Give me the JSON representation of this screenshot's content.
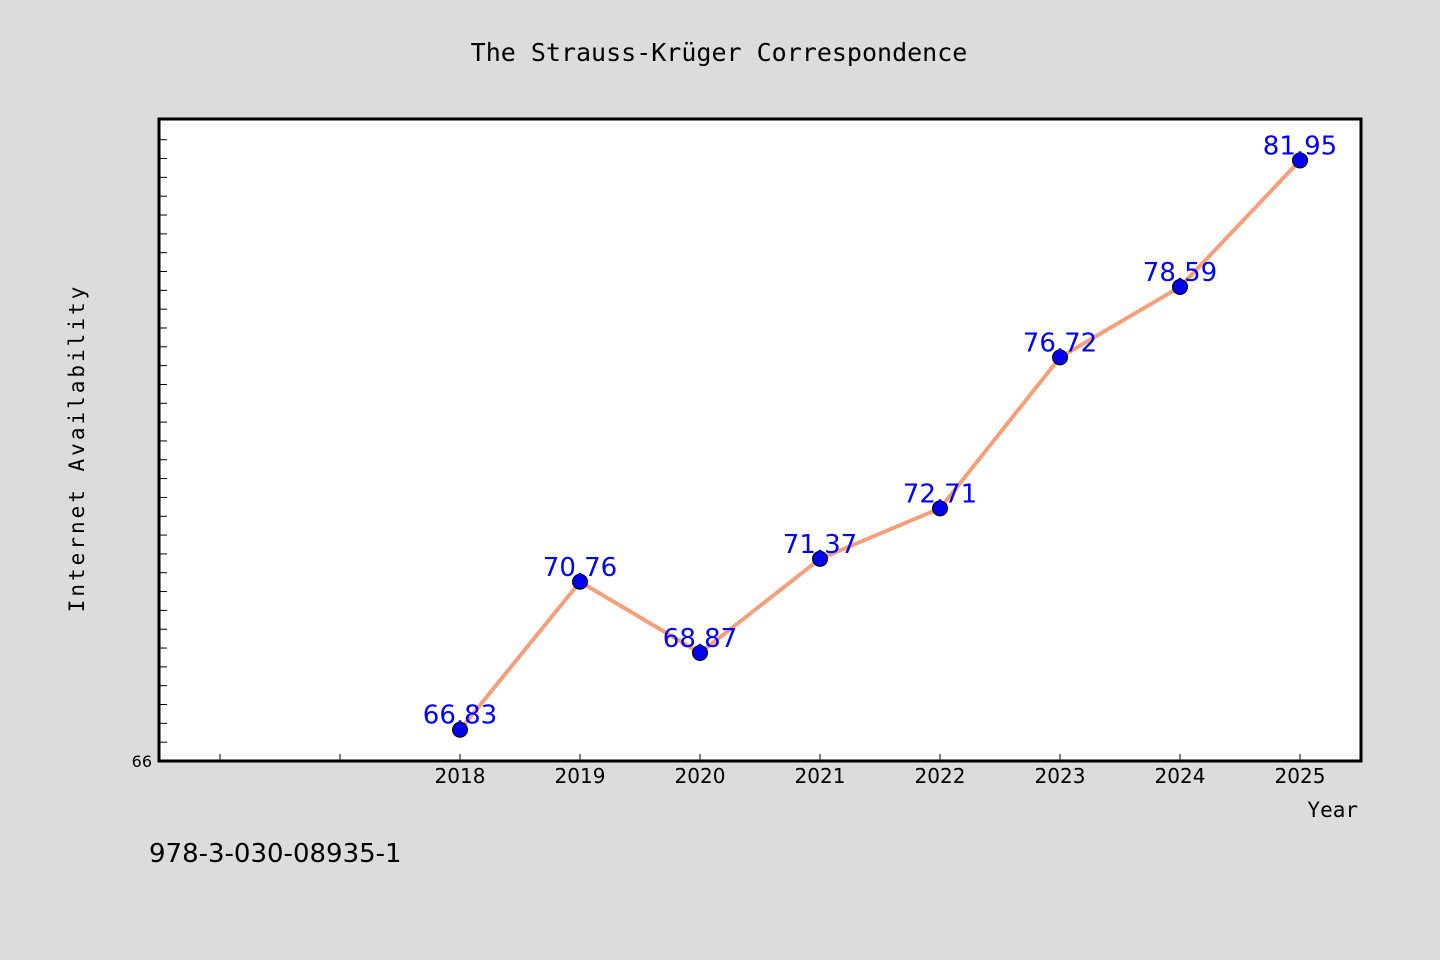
{
  "chart_data": {
    "type": "line",
    "title": "The Strauss-Krüger Correspondence",
    "xlabel": "Year",
    "ylabel": "Internet Availability",
    "x": [
      "2018",
      "2019",
      "2020",
      "2021",
      "2022",
      "2023",
      "2024",
      "2025"
    ],
    "series": [
      {
        "values": [
          66.83,
          70.76,
          68.87,
          71.37,
          72.71,
          76.72,
          78.59,
          81.95
        ],
        "labels": [
          "66.83",
          "70.76",
          "68.87",
          "71.37",
          "72.71",
          "76.72",
          "78.59",
          "81.95"
        ]
      }
    ],
    "ylim": [
      66,
      83.05
    ],
    "y_tick_labels": [
      {
        "value": 66,
        "label": "66"
      }
    ],
    "grid": false,
    "colors": {
      "line": "#f4a07c",
      "marker": "#0000ee",
      "data_label": "#0000ff",
      "plot_background": "#ffffff",
      "figure_background": "#dcdcdc"
    }
  },
  "footer": {
    "isbn": "978-3-030-08935-1"
  }
}
